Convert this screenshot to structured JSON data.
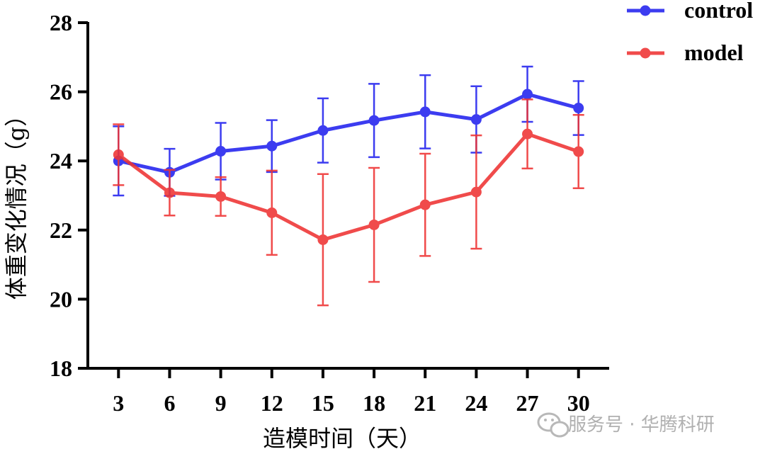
{
  "chart_data": {
    "type": "line",
    "title": "",
    "xlabel": "造模时间（天）",
    "ylabel": "体重变化情况（g）",
    "x": [
      3,
      6,
      9,
      12,
      15,
      18,
      21,
      24,
      27,
      30
    ],
    "xlim": [
      1.2,
      31.8
    ],
    "ylim": [
      18,
      28
    ],
    "yticks": [
      18,
      20,
      22,
      24,
      26,
      28
    ],
    "grid": false,
    "legend_position": "top-right",
    "error_bars": true,
    "series": [
      {
        "name": "control",
        "color": "#2222ee",
        "values": [
          24.0,
          23.67,
          24.28,
          24.43,
          24.88,
          25.17,
          25.42,
          25.2,
          25.93,
          25.53
        ],
        "errors": [
          1.0,
          0.68,
          0.82,
          0.75,
          0.93,
          1.06,
          1.06,
          0.96,
          0.8,
          0.78
        ]
      },
      {
        "name": "model",
        "color": "#ee3333",
        "values": [
          24.18,
          23.08,
          22.97,
          22.5,
          21.72,
          22.15,
          22.73,
          23.1,
          24.78,
          24.27
        ],
        "errors": [
          0.88,
          0.66,
          0.56,
          1.22,
          1.9,
          1.65,
          1.48,
          1.64,
          1.0,
          1.06
        ]
      }
    ]
  },
  "watermark": {
    "text": "服务号 · 华腾科研",
    "icon": "wechat-icon"
  }
}
